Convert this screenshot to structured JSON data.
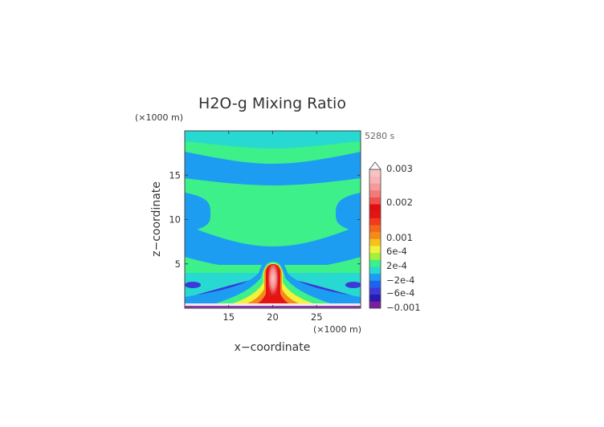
{
  "chart_data": {
    "type": "heatmap",
    "title": "H2O-g Mixing Ratio",
    "time_label": "5280 s",
    "xlabel": "x−coordinate",
    "ylabel": "z−coordinate",
    "x_unit": "(×1000 m)",
    "y_unit": "(×1000 m)",
    "xlim": [
      10,
      30
    ],
    "ylim": [
      0,
      20
    ],
    "x_ticks": [
      15,
      20,
      25
    ],
    "y_ticks": [
      5,
      10,
      15
    ],
    "colorbar": {
      "tick_labels": [
        "0.003",
        "0.002",
        "0.001",
        "6e-4",
        "2e-4",
        "−2e-4",
        "−6e-4",
        "−0.001"
      ],
      "colors": [
        "#7b1fa2",
        "#2a1ab0",
        "#3a3ad8",
        "#1c64ee",
        "#1c9df2",
        "#27d9d0",
        "#3df08a",
        "#a6f03a",
        "#f2f23a",
        "#f6c21a",
        "#f68a18",
        "#f5661a",
        "#f33a1a",
        "#e51414",
        "#e01010",
        "#f25050",
        "#f37a7a",
        "#f59a9a",
        "#f7b4b4",
        "#f8c2c2"
      ]
    }
  }
}
